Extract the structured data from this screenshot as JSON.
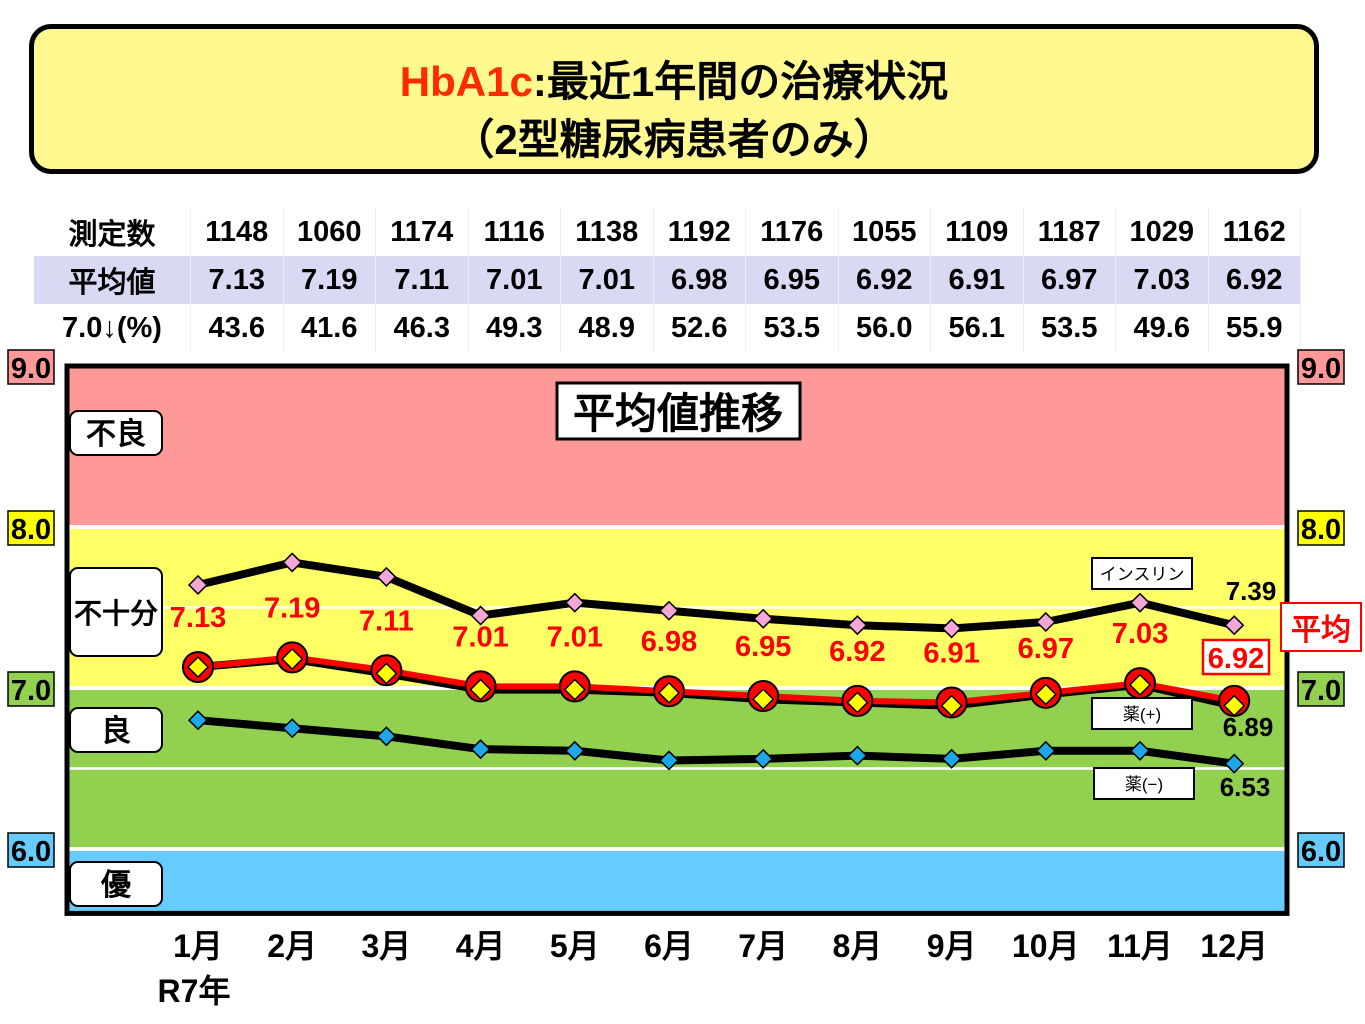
{
  "title": {
    "line1_prefix": "HbA1c",
    "line1_rest": ":最近1年間の治療状況",
    "line2": "（2型糖尿病患者のみ）"
  },
  "table": {
    "rows": [
      {
        "label": "測定数",
        "values": [
          "1148",
          "1060",
          "1174",
          "1116",
          "1138",
          "1192",
          "1176",
          "1055",
          "1109",
          "1187",
          "1029",
          "1162"
        ]
      },
      {
        "label": "平均値",
        "values": [
          "7.13",
          "7.19",
          "7.11",
          "7.01",
          "7.01",
          "6.98",
          "6.95",
          "6.92",
          "6.91",
          "6.97",
          "7.03",
          "6.92"
        ]
      },
      {
        "label": "7.0↓(%)",
        "values": [
          "43.6",
          "41.6",
          "46.3",
          "49.3",
          "48.9",
          "52.6",
          "53.5",
          "56.0",
          "56.1",
          "53.5",
          "49.6",
          "55.9"
        ]
      }
    ]
  },
  "chart_data": {
    "type": "line",
    "title": "平均値推移",
    "categories": [
      "1月",
      "2月",
      "3月",
      "4月",
      "5月",
      "6月",
      "7月",
      "8月",
      "9月",
      "10月",
      "11月",
      "12月"
    ],
    "year_label": "R7年",
    "ylim": [
      5.6,
      9.0
    ],
    "yticks": [
      "9.0",
      "8.0",
      "7.0",
      "6.0"
    ],
    "bands": [
      {
        "label": "不良",
        "from": 8.0,
        "to": 9.0,
        "color": "#ff9999"
      },
      {
        "label": "不十分",
        "from": 7.0,
        "to": 8.0,
        "color": "#ffff66"
      },
      {
        "label": "良",
        "from": 6.0,
        "to": 7.0,
        "color": "#92d050"
      },
      {
        "label": "優",
        "from": 5.6,
        "to": 6.0,
        "color": "#66ccff"
      }
    ],
    "series": [
      {
        "name": "インスリン",
        "values": [
          7.64,
          7.78,
          7.69,
          7.45,
          7.53,
          7.48,
          7.43,
          7.39,
          7.37,
          7.41,
          7.53,
          7.39
        ],
        "end_label": "7.39",
        "marker_color": "#f4a6d8"
      },
      {
        "name": "平均",
        "values": [
          7.13,
          7.19,
          7.11,
          7.01,
          7.01,
          6.98,
          6.95,
          6.92,
          6.91,
          6.97,
          7.03,
          6.92
        ],
        "labels": [
          "7.13",
          "7.19",
          "7.11",
          "7.01",
          "7.01",
          "6.98",
          "6.95",
          "6.92",
          "6.91",
          "6.97",
          "7.03",
          "6.92"
        ],
        "color": "#ff0000"
      },
      {
        "name": "薬(+)",
        "values": [
          7.13,
          7.18,
          7.09,
          6.99,
          6.99,
          6.97,
          6.93,
          6.91,
          6.89,
          6.96,
          7.02,
          6.89
        ],
        "end_label": "6.89",
        "marker_color": "#ffff00"
      },
      {
        "name": "薬(−)",
        "values": [
          6.8,
          6.75,
          6.7,
          6.62,
          6.61,
          6.55,
          6.56,
          6.58,
          6.56,
          6.61,
          6.61,
          6.53
        ],
        "end_label": "6.53",
        "marker_color": "#1ea7e8"
      }
    ]
  }
}
